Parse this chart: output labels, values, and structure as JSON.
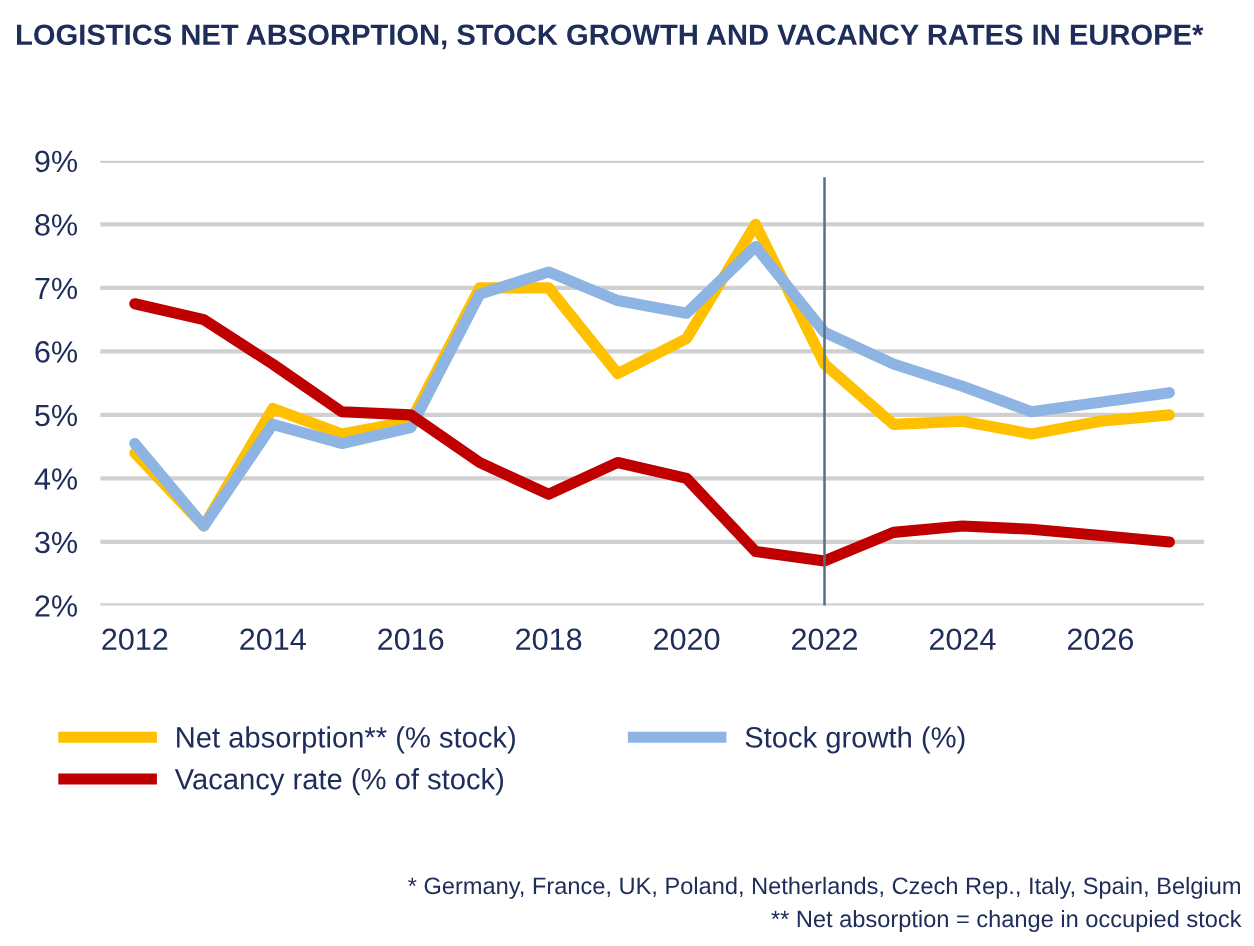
{
  "chart_data": {
    "type": "line",
    "title": "LOGISTICS NET ABSORPTION, STOCK GROWTH AND VACANCY RATES IN EUROPE*",
    "x": [
      2012,
      2013,
      2014,
      2015,
      2016,
      2017,
      2018,
      2019,
      2020,
      2021,
      2022,
      2023,
      2024,
      2025,
      2026,
      2027
    ],
    "series": [
      {
        "name": "Net absorption** (% stock)",
        "color": "#ffc000",
        "values": [
          4.4,
          3.25,
          5.1,
          4.7,
          4.9,
          7.0,
          7.0,
          5.65,
          6.2,
          8.0,
          5.8,
          4.85,
          4.9,
          4.7,
          4.9,
          5.0
        ]
      },
      {
        "name": "Stock growth (%)",
        "color": "#8db4e2",
        "values": [
          4.55,
          3.25,
          4.85,
          4.55,
          4.8,
          6.9,
          7.25,
          6.8,
          6.6,
          7.65,
          6.3,
          5.8,
          5.45,
          5.05,
          5.2,
          5.35
        ]
      },
      {
        "name": "Vacancy rate (% of stock)",
        "color": "#c00000",
        "values": [
          6.75,
          6.5,
          5.8,
          5.05,
          5.0,
          4.25,
          3.75,
          4.25,
          4.0,
          2.85,
          2.7,
          3.15,
          3.25,
          3.2,
          3.1,
          3.0
        ]
      }
    ],
    "xlim": [
      2011.5,
      2027.5
    ],
    "xticks": [
      2012,
      2014,
      2016,
      2018,
      2020,
      2022,
      2024,
      2026
    ],
    "ylim": [
      2,
      9
    ],
    "yticks": [
      {
        "value": 2,
        "label": "2%"
      },
      {
        "value": 3,
        "label": "3%"
      },
      {
        "value": 4,
        "label": "4%"
      },
      {
        "value": 5,
        "label": "5%"
      },
      {
        "value": 6,
        "label": "6%"
      },
      {
        "value": 7,
        "label": "7%"
      },
      {
        "value": 8,
        "label": "8%"
      },
      {
        "value": 9,
        "label": "9%"
      }
    ],
    "ref_lines": [
      {
        "axis": "x",
        "value": 2022,
        "color": "#5a7080"
      }
    ],
    "grid": "y",
    "legend": "bottom",
    "marker": "none",
    "line_style": "solid",
    "annotations": [
      "* Germany, France, UK, Poland, Netherlands, Czech Rep., Italy, Spain, Belgium",
      "** Net absorption = change in occupied stock"
    ]
  }
}
